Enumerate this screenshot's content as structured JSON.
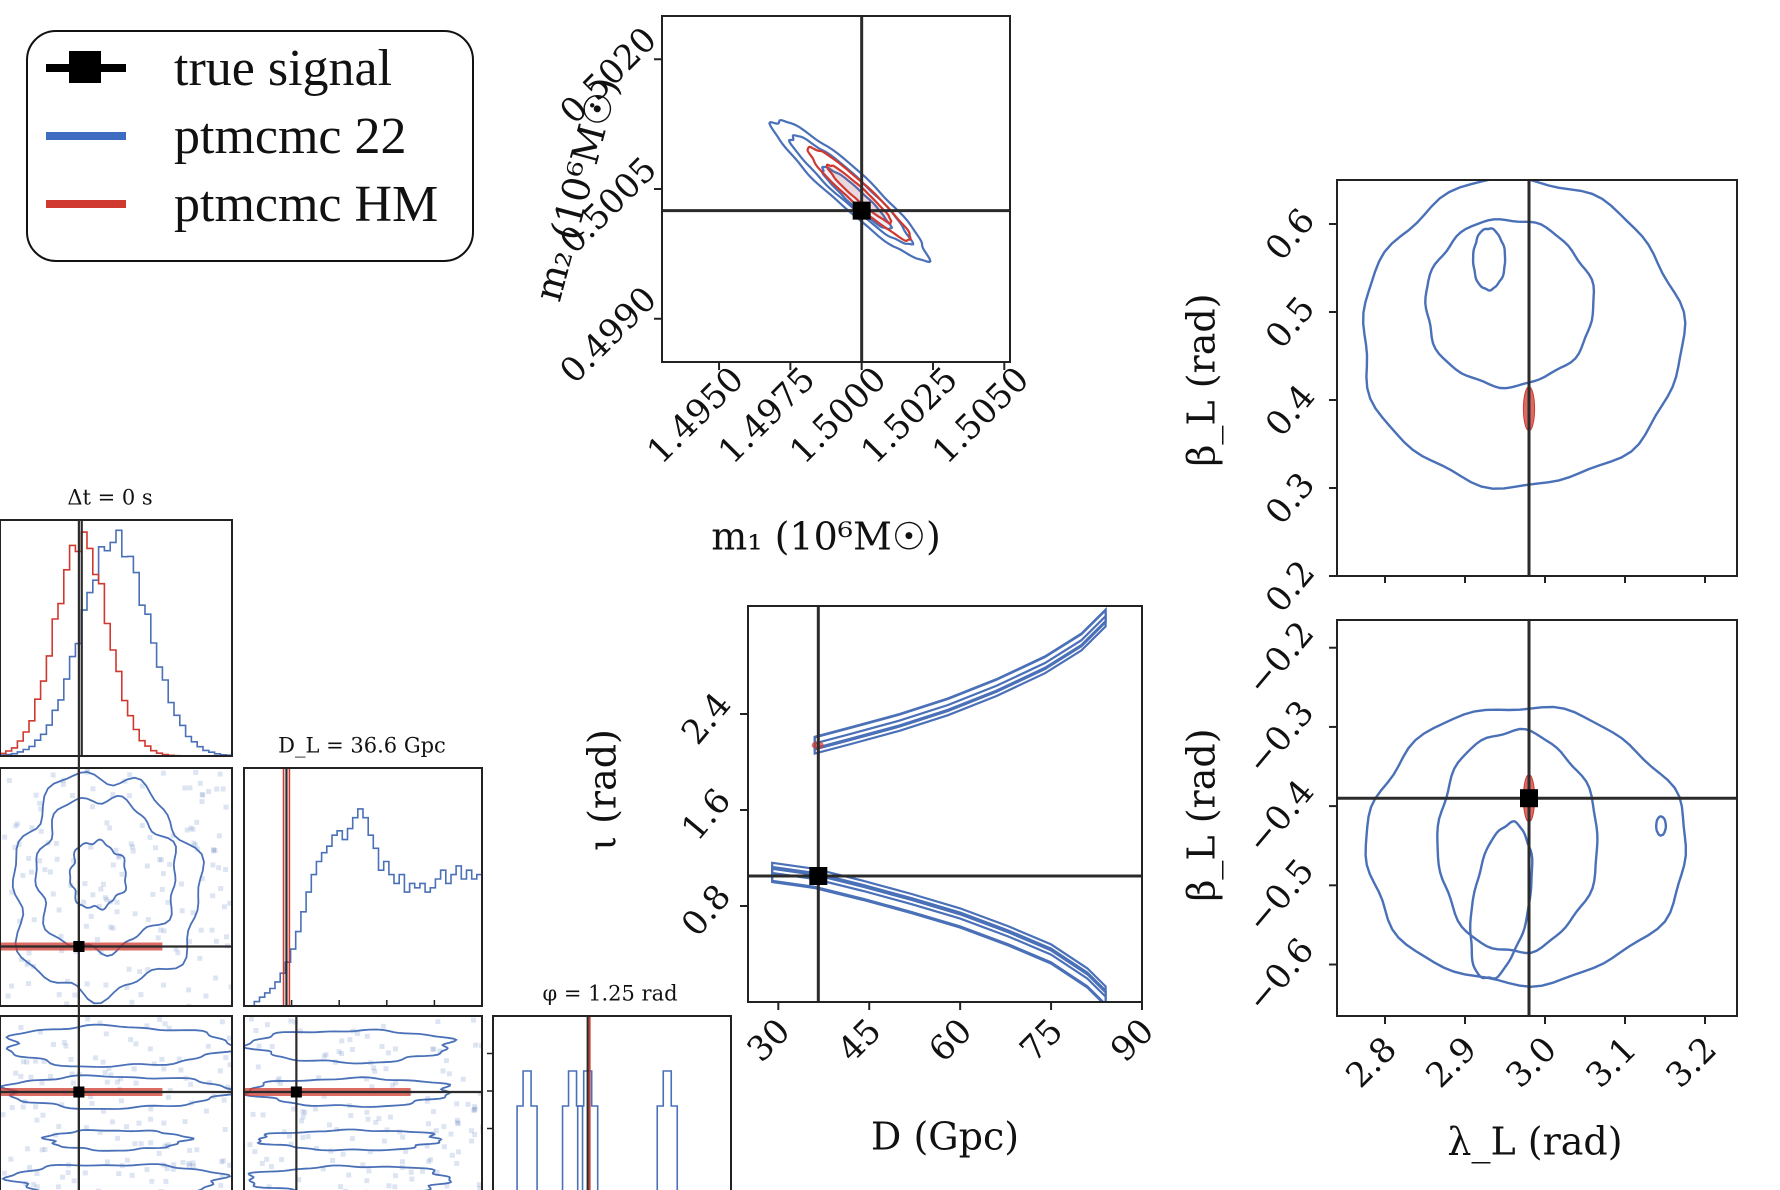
{
  "legend": {
    "items": [
      {
        "label": "true signal",
        "kind": "marker",
        "color": "#000000"
      },
      {
        "label": "ptmcmc 22",
        "kind": "line",
        "color": "#3f6cc0"
      },
      {
        "label": "ptmcmc HM",
        "kind": "line",
        "color": "#d0392f"
      }
    ]
  },
  "colors": {
    "blue": "#4a70b8",
    "red": "#d0392f",
    "truth": "#2b2b2b"
  },
  "chart_data": [
    {
      "id": "m1m2",
      "type": "contour",
      "xlabel": "m₁ (10⁶M☉)",
      "ylabel": "m₂ (10⁶M☉)",
      "xlim": [
        1.493,
        1.5052
      ],
      "ylim": [
        0.4985,
        0.5025
      ],
      "xticks": [
        1.495,
        1.4975,
        1.5,
        1.5025,
        1.505
      ],
      "xticklabels": [
        "1.4950",
        "1.4975",
        "1.5000",
        "1.5025",
        "1.5050"
      ],
      "yticks": [
        0.499,
        0.5005,
        0.502
      ],
      "yticklabels": [
        "0.4990",
        "0.5005",
        "0.5020"
      ],
      "truth": [
        1.5,
        0.50025
      ],
      "blue_contours": [
        {
          "center": [
            1.4996,
            0.5005
          ],
          "rx": 0.0036,
          "ry": 0.00021,
          "angle": -33
        },
        {
          "center": [
            1.4996,
            0.5005
          ],
          "rx": 0.0028,
          "ry": 0.00015,
          "angle": -33
        },
        {
          "center": [
            1.4998,
            0.5004
          ],
          "rx": 0.0016,
          "ry": 9e-05,
          "angle": -33
        }
      ],
      "red_contours": [
        {
          "center": [
            1.4999,
            0.50045
          ],
          "rx": 0.0024,
          "ry": 0.00012,
          "angle": -33
        },
        {
          "center": [
            1.4999,
            0.50045
          ],
          "rx": 0.0015,
          "ry": 7e-05,
          "angle": -33
        }
      ]
    },
    {
      "id": "beta_lambda_top",
      "type": "contour",
      "ylabel": "β_L (rad)",
      "xlim": [
        2.74,
        3.24
      ],
      "ylim": [
        0.2,
        0.65
      ],
      "yticks": [
        0.2,
        0.3,
        0.4,
        0.5,
        0.6
      ],
      "yticklabels": [
        "0.2",
        "0.3",
        "0.4",
        "0.5",
        "0.6"
      ],
      "truth_x": 2.98,
      "blue_contours": [
        {
          "center": [
            2.97,
            0.475
          ],
          "rx": 0.2,
          "ry": 0.175
        },
        {
          "center": [
            2.955,
            0.51
          ],
          "rx": 0.105,
          "ry": 0.095
        },
        {
          "center": [
            2.93,
            0.56
          ],
          "rx": 0.02,
          "ry": 0.035
        }
      ],
      "red_contours": [
        {
          "center": [
            2.98,
            0.39
          ],
          "rx": 0.007,
          "ry": 0.025
        }
      ]
    },
    {
      "id": "beta_lambda_bottom",
      "type": "contour",
      "xlabel": "λ_L (rad)",
      "ylabel": "β_L (rad)",
      "xlim": [
        2.74,
        3.24
      ],
      "ylim": [
        -0.665,
        -0.165
      ],
      "xticks": [
        2.8,
        2.9,
        3.0,
        3.1,
        3.2
      ],
      "xticklabels": [
        "2.8",
        "2.9",
        "3.0",
        "3.1",
        "3.2"
      ],
      "yticks": [
        -0.6,
        -0.5,
        -0.4,
        -0.3,
        -0.2
      ],
      "yticklabels": [
        "−0.6",
        "−0.5",
        "−0.4",
        "−0.3",
        "−0.2"
      ],
      "truth": [
        2.98,
        -0.39
      ],
      "blue_contours": [
        {
          "center": [
            2.975,
            -0.45
          ],
          "rx": 0.2,
          "ry": 0.175
        },
        {
          "center": [
            2.965,
            -0.445
          ],
          "rx": 0.1,
          "ry": 0.14
        },
        {
          "center": [
            2.945,
            -0.52
          ],
          "rx": 0.035,
          "ry": 0.1
        },
        {
          "center": [
            3.145,
            -0.425
          ],
          "rx": 0.006,
          "ry": 0.012
        }
      ],
      "red_contours": [
        {
          "center": [
            2.98,
            -0.39
          ],
          "rx": 0.007,
          "ry": 0.03
        }
      ]
    },
    {
      "id": "iota_D",
      "type": "contour",
      "xlabel": "D (Gpc)",
      "ylabel": "ι (rad)",
      "xlim": [
        25,
        90
      ],
      "ylim": [
        0.0,
        3.3
      ],
      "xticks": [
        30,
        45,
        60,
        75,
        90
      ],
      "xticklabels": [
        "30",
        "45",
        "60",
        "75",
        "90"
      ],
      "yticks": [
        0.8,
        1.6,
        2.4
      ],
      "yticklabels": [
        "0.8",
        "1.6",
        "2.4"
      ],
      "truth": [
        36.6,
        1.05
      ],
      "upper_branch": {
        "x": [
          36,
          42,
          50,
          58,
          66,
          74,
          80,
          84
        ],
        "y": [
          2.14,
          2.22,
          2.33,
          2.46,
          2.62,
          2.81,
          3.0,
          3.2
        ]
      },
      "lower_branch": {
        "x": [
          29,
          36,
          44,
          52,
          60,
          68,
          75,
          81,
          84
        ],
        "y": [
          1.08,
          1.03,
          0.93,
          0.82,
          0.7,
          0.55,
          0.4,
          0.2,
          0.05
        ]
      },
      "red_marks": [
        [
          36.5,
          2.14
        ],
        [
          36.6,
          1.05
        ]
      ]
    },
    {
      "id": "dt_hist",
      "type": "histogram",
      "title": "Δt = 0 s",
      "truth_x": 0.0,
      "xlim": [
        -0.68,
        1.25
      ],
      "bins": 40,
      "blue": {
        "mean": 0.28,
        "sd": 0.28
      },
      "red": {
        "mean": 0.0,
        "sd": 0.22
      }
    },
    {
      "id": "dl_hist",
      "type": "histogram",
      "title": "D_L = 36.6 Gpc",
      "truth_x": 36.6,
      "xlim": [
        25,
        90
      ],
      "blue_steps": [
        0.0,
        0.0,
        0.02,
        0.04,
        0.06,
        0.08,
        0.11,
        0.15,
        0.2,
        0.26,
        0.34,
        0.43,
        0.52,
        0.6,
        0.66,
        0.7,
        0.73,
        0.78,
        0.8,
        0.76,
        0.81,
        0.86,
        0.9,
        0.86,
        0.78,
        0.72,
        0.62,
        0.66,
        0.6,
        0.56,
        0.6,
        0.52,
        0.56,
        0.54,
        0.56,
        0.52,
        0.54,
        0.58,
        0.62,
        0.56,
        0.6,
        0.64,
        0.58,
        0.62,
        0.58,
        0.6
      ],
      "red_lines": [
        35.8,
        37.4
      ]
    },
    {
      "id": "phi_hist",
      "type": "histogram",
      "title": "φ = 1.25 rad",
      "truth_x": 1.25,
      "xlim": [
        0,
        3.1416
      ],
      "peaks": [
        0.45,
        1.05,
        1.25,
        2.3
      ]
    },
    {
      "id": "dt_dl_2d",
      "type": "scatter-density",
      "truth_y_frac": 0.75,
      "truth_x_frac": 0.34
    },
    {
      "id": "dt_phi_2d",
      "type": "scatter-density",
      "truth_y_frac": 0.38
    },
    {
      "id": "dl_phi_2d",
      "type": "scatter-density",
      "truth_y_frac": 0.38
    }
  ]
}
